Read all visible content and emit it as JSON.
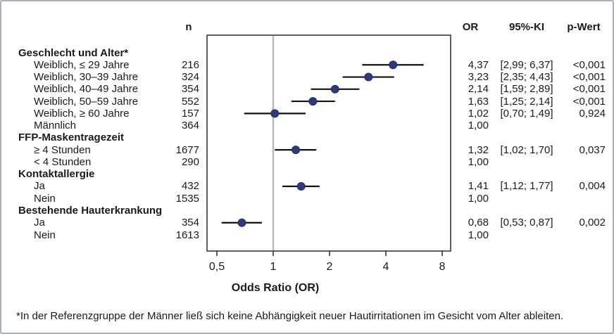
{
  "headers": {
    "n": "n",
    "or": "OR",
    "ki": "95%-KI",
    "p": "p-Wert"
  },
  "axis": {
    "label": "Odds Ratio (OR)",
    "ticks": [
      "0,5",
      "1",
      "2",
      "4",
      "8"
    ]
  },
  "footnote": "*In der Referenzgruppe der Männer ließ sich keine Abhängigkeit neuer Hautirritationen im Gesicht vom Alter ableiten.",
  "colors": {
    "point": "#2e3a7e",
    "whisker": "#111111",
    "refline": "#b8b8b8",
    "box": "#2b2b2b",
    "border": "#a9b2ba"
  },
  "chart_data": {
    "type": "scatter",
    "subtype": "forest-plot",
    "xlabel": "Odds Ratio (OR)",
    "x_scale": "log2",
    "x_ticks": [
      0.5,
      1,
      2,
      4,
      8
    ],
    "xlim": [
      0.42,
      9.2
    ],
    "ref_line": 1,
    "columns": [
      "label",
      "n",
      "OR",
      "95%-KI",
      "p-Wert"
    ],
    "rows": [
      {
        "label": "Geschlecht und Alter*",
        "group": true
      },
      {
        "label": "Weiblich, ≤ 29 Jahre",
        "n": "216",
        "or_text": "4,37",
        "ki": "[2,99; 6,37]",
        "p": "<0,001",
        "or": 4.37,
        "lo": 2.99,
        "hi": 6.37
      },
      {
        "label": "Weiblich, 30–39 Jahre",
        "n": "324",
        "or_text": "3,23",
        "ki": "[2,35; 4,43]",
        "p": "<0,001",
        "or": 3.23,
        "lo": 2.35,
        "hi": 4.43
      },
      {
        "label": "Weiblich, 40–49 Jahre",
        "n": "354",
        "or_text": "2,14",
        "ki": "[1,59; 2,89]",
        "p": "<0,001",
        "or": 2.14,
        "lo": 1.59,
        "hi": 2.89
      },
      {
        "label": "Weiblich, 50–59 Jahre",
        "n": "552",
        "or_text": "1,63",
        "ki": "[1,25; 2,14]",
        "p": "<0,001",
        "or": 1.63,
        "lo": 1.25,
        "hi": 2.14
      },
      {
        "label": "Weiblich, ≥ 60 Jahre",
        "n": "157",
        "or_text": "1,02",
        "ki": "[0,70; 1,49]",
        "p": "0,924",
        "or": 1.02,
        "lo": 0.7,
        "hi": 1.49
      },
      {
        "label": "Männlich",
        "n": "364",
        "or_text": "1,00"
      },
      {
        "label": "FFP-Maskentragezeit",
        "group": true
      },
      {
        "label": "≥ 4 Stunden",
        "n": "1677",
        "or_text": "1,32",
        "ki": "[1,02; 1,70]",
        "p": "0,037",
        "or": 1.32,
        "lo": 1.02,
        "hi": 1.7
      },
      {
        "label": "< 4 Stunden",
        "n": "290",
        "or_text": "1,00"
      },
      {
        "label": "Kontaktallergie",
        "group": true
      },
      {
        "label": "Ja",
        "n": "432",
        "or_text": "1,41",
        "ki": "[1,12; 1,77]",
        "p": "0,004",
        "or": 1.41,
        "lo": 1.12,
        "hi": 1.77
      },
      {
        "label": "Nein",
        "n": "1535",
        "or_text": "1,00"
      },
      {
        "label": "Bestehende Hauterkrankung",
        "group": true
      },
      {
        "label": "Ja",
        "n": "354",
        "or_text": "0,68",
        "ki": "[0,53; 0,87]",
        "p": "0,002",
        "or": 0.68,
        "lo": 0.53,
        "hi": 0.87
      },
      {
        "label": "Nein",
        "n": "1613",
        "or_text": "1,00"
      }
    ]
  }
}
